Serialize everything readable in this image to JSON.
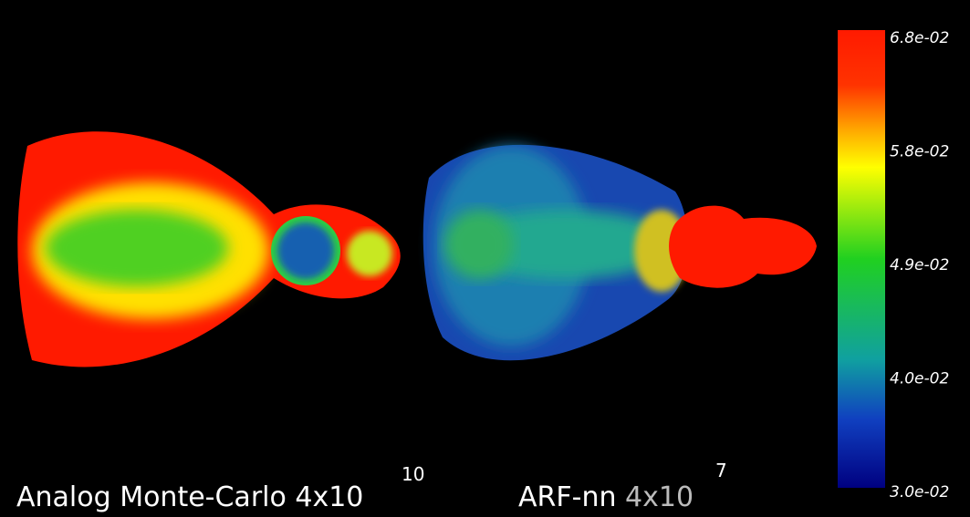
{
  "colorbar": {
    "ticks": [
      "6.8e-02",
      "5.8e-02",
      "4.9e-02",
      "4.0e-02",
      "3.0e-02"
    ]
  },
  "panels": [
    {
      "caption": "Analog Monte-Carlo 4x10",
      "exponent": "10"
    },
    {
      "caption": "ARF-nn",
      "emphasis": "4x10",
      "exponent": "7"
    }
  ]
}
